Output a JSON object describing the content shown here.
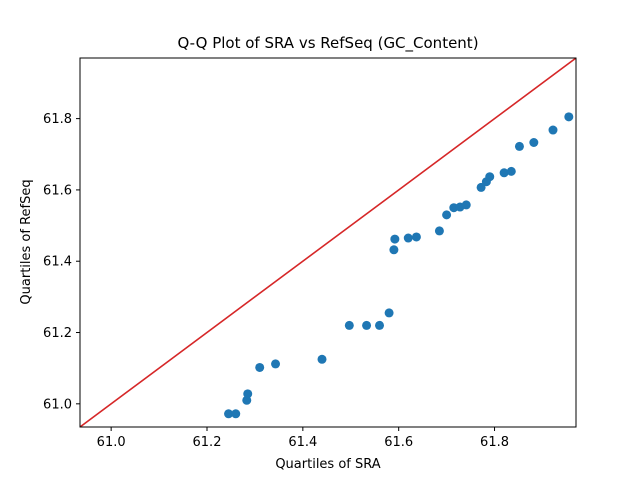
{
  "chart_data": {
    "type": "scatter",
    "title": "Q-Q Plot of SRA vs RefSeq (GC_Content)",
    "xlabel": "Quartiles of SRA",
    "ylabel": "Quartiles of RefSeq",
    "xlim": [
      60.935,
      61.97
    ],
    "ylim": [
      60.935,
      61.97
    ],
    "xticks": [
      61.0,
      61.2,
      61.4,
      61.6,
      61.8
    ],
    "yticks": [
      61.0,
      61.2,
      61.4,
      61.6,
      61.8
    ],
    "xtick_labels": [
      "61.0",
      "61.2",
      "61.4",
      "61.6",
      "61.8"
    ],
    "ytick_labels": [
      "61.0",
      "61.2",
      "61.4",
      "61.6",
      "61.8"
    ],
    "grid": false,
    "points_color": "#1f77b4",
    "reference_line_color": "#d62728",
    "reference_line": {
      "x": [
        60.935,
        61.97
      ],
      "y": [
        60.935,
        61.97
      ]
    },
    "points": [
      {
        "x": 61.245,
        "y": 60.972
      },
      {
        "x": 61.26,
        "y": 60.972
      },
      {
        "x": 61.283,
        "y": 61.01
      },
      {
        "x": 61.285,
        "y": 61.028
      },
      {
        "x": 61.31,
        "y": 61.102
      },
      {
        "x": 61.343,
        "y": 61.112
      },
      {
        "x": 61.44,
        "y": 61.125
      },
      {
        "x": 61.497,
        "y": 61.22
      },
      {
        "x": 61.533,
        "y": 61.22
      },
      {
        "x": 61.56,
        "y": 61.22
      },
      {
        "x": 61.58,
        "y": 61.255
      },
      {
        "x": 61.59,
        "y": 61.432
      },
      {
        "x": 61.592,
        "y": 61.462
      },
      {
        "x": 61.62,
        "y": 61.465
      },
      {
        "x": 61.637,
        "y": 61.468
      },
      {
        "x": 61.685,
        "y": 61.485
      },
      {
        "x": 61.7,
        "y": 61.53
      },
      {
        "x": 61.715,
        "y": 61.55
      },
      {
        "x": 61.728,
        "y": 61.552
      },
      {
        "x": 61.741,
        "y": 61.558
      },
      {
        "x": 61.772,
        "y": 61.607
      },
      {
        "x": 61.783,
        "y": 61.623
      },
      {
        "x": 61.79,
        "y": 61.637
      },
      {
        "x": 61.82,
        "y": 61.648
      },
      {
        "x": 61.835,
        "y": 61.652
      },
      {
        "x": 61.852,
        "y": 61.722
      },
      {
        "x": 61.882,
        "y": 61.733
      },
      {
        "x": 61.922,
        "y": 61.768
      },
      {
        "x": 61.955,
        "y": 61.805
      }
    ]
  }
}
